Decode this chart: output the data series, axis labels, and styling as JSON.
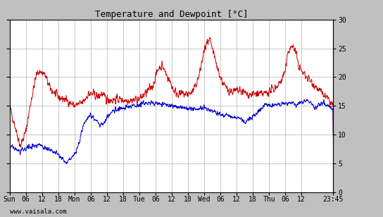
{
  "title": "Temperature and Dewpoint [°C]",
  "x_tick_labels": [
    "Sun",
    "06",
    "12",
    "18",
    "Mon",
    "06",
    "12",
    "18",
    "Tue",
    "06",
    "12",
    "18",
    "Wed",
    "06",
    "12",
    "18",
    "Thu",
    "06",
    "12",
    "23:45"
  ],
  "x_tick_positions": [
    0,
    6,
    12,
    18,
    24,
    30,
    36,
    42,
    48,
    54,
    60,
    66,
    72,
    78,
    84,
    90,
    96,
    102,
    108,
    119.75
  ],
  "ylim": [
    0,
    30
  ],
  "yticks": [
    0,
    5,
    10,
    15,
    20,
    25,
    30
  ],
  "temp_color": "#cc0000",
  "dew_color": "#0000cc",
  "bg_color": "#ffffff",
  "outer_bg": "#c0c0c0",
  "watermark": "www.vaisala.com",
  "line_width": 0.7,
  "total_hours": 119.75,
  "noise_seed": 42
}
